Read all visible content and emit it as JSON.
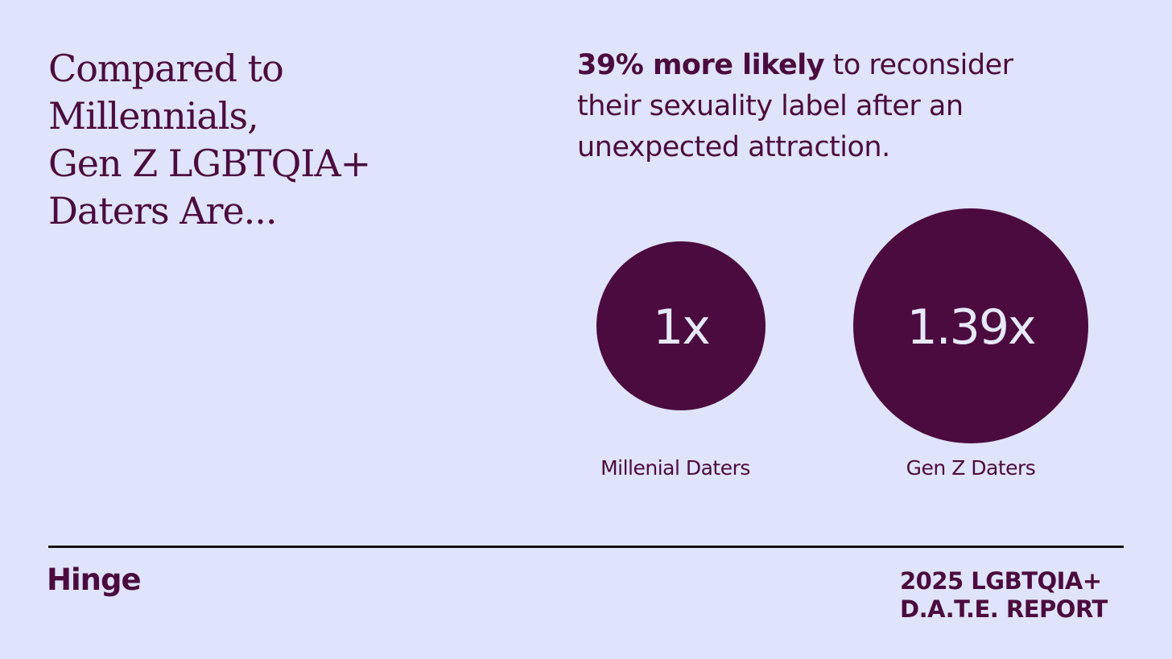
{
  "headline": {
    "lines": [
      "Compared to",
      "Millennials,",
      "Gen Z LGBTQIA+",
      "Daters Are..."
    ]
  },
  "stat": {
    "highlight": "39% more likely",
    "line1_rest": " to reconsider",
    "line2": "their sexuality label after an",
    "line3": "unexpected attraction."
  },
  "chart_data": {
    "type": "bubble",
    "categories": [
      "Millenial Daters",
      "Gen Z Daters"
    ],
    "values": [
      1,
      1.39
    ],
    "labels": [
      "1x",
      "1.39x"
    ]
  },
  "footer": {
    "logo": "Hinge",
    "report_lines": [
      "2025 LGBTQIA+",
      "D.A.T.E. REPORT"
    ]
  },
  "colors": {
    "background": "#dfe3fb",
    "accent": "#4b0b3f",
    "bubble_text": "#e6e8fb"
  }
}
